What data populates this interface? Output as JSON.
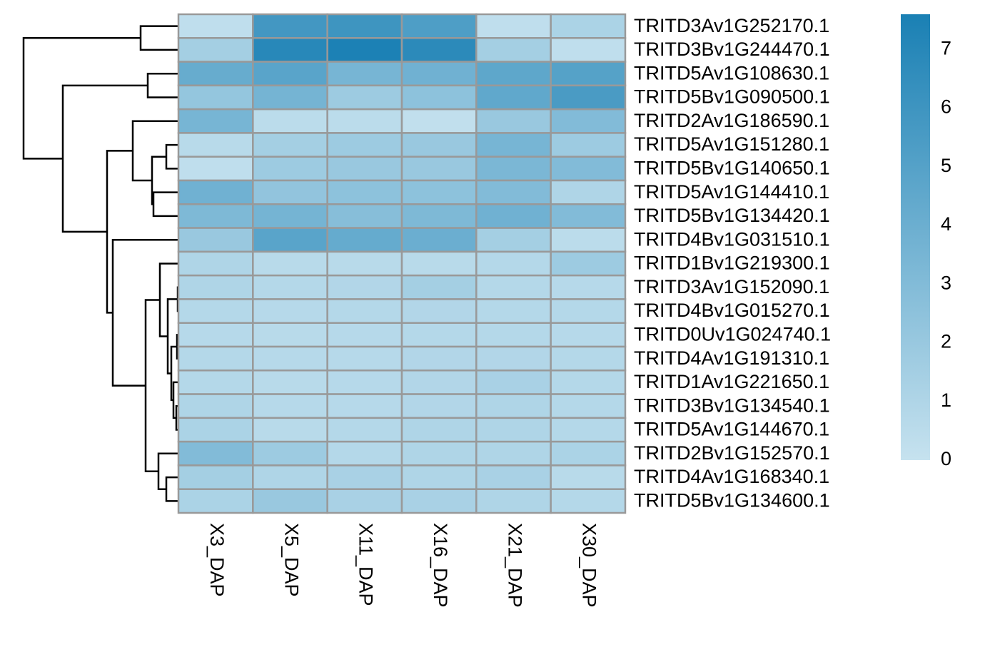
{
  "chart_data": {
    "type": "heatmap",
    "rows": [
      "TRITD3Av1G252170.1",
      "TRITD3Bv1G244470.1",
      "TRITD5Av1G108630.1",
      "TRITD5Bv1G090500.1",
      "TRITD2Av1G186590.1",
      "TRITD5Av1G151280.1",
      "TRITD5Bv1G140650.1",
      "TRITD5Av1G144410.1",
      "TRITD5Bv1G134420.1",
      "TRITD4Bv1G031510.1",
      "TRITD1Bv1G219300.1",
      "TRITD3Av1G152090.1",
      "TRITD4Bv1G015270.1",
      "TRITD0Uv1G024740.1",
      "TRITD4Av1G191310.1",
      "TRITD1Av1G221650.1",
      "TRITD3Bv1G134540.1",
      "TRITD5Av1G144670.1",
      "TRITD2Bv1G152570.1",
      "TRITD4Av1G168340.1",
      "TRITD5Bv1G134600.1"
    ],
    "columns": [
      "X3_DAP",
      "X5_DAP",
      "X11_DAP",
      "X16_DAP",
      "X21_DAP",
      "X30_DAP"
    ],
    "values": [
      [
        0.3,
        5.8,
        6.0,
        5.3,
        0.3,
        1.2
      ],
      [
        1.5,
        7.0,
        7.5,
        6.8,
        1.5,
        0.3
      ],
      [
        4.2,
        4.8,
        3.5,
        3.8,
        4.6,
        5.0
      ],
      [
        2.2,
        3.6,
        1.8,
        2.5,
        4.5,
        5.5
      ],
      [
        3.5,
        0.5,
        0.5,
        0.2,
        2.0,
        3.0
      ],
      [
        0.6,
        1.5,
        1.8,
        2.0,
        3.5,
        1.8
      ],
      [
        0.3,
        1.8,
        2.0,
        2.0,
        3.3,
        3.0
      ],
      [
        3.8,
        2.3,
        2.5,
        2.5,
        3.0,
        1.0
      ],
      [
        3.2,
        3.6,
        2.8,
        3.2,
        3.8,
        3.0
      ],
      [
        2.0,
        4.8,
        4.3,
        4.0,
        1.5,
        0.5
      ],
      [
        1.0,
        0.6,
        0.6,
        0.6,
        0.8,
        1.8
      ],
      [
        1.0,
        0.8,
        0.9,
        1.5,
        0.8,
        0.7
      ],
      [
        0.8,
        0.7,
        0.8,
        0.9,
        0.8,
        0.8
      ],
      [
        0.7,
        0.6,
        0.7,
        0.8,
        0.8,
        0.7
      ],
      [
        0.8,
        0.7,
        0.7,
        0.9,
        0.9,
        0.8
      ],
      [
        0.8,
        0.6,
        0.7,
        0.9,
        1.3,
        0.8
      ],
      [
        1.0,
        0.7,
        0.7,
        0.9,
        1.0,
        0.8
      ],
      [
        1.2,
        0.6,
        0.8,
        1.0,
        1.0,
        0.8
      ],
      [
        3.0,
        1.8,
        0.8,
        1.0,
        1.0,
        1.2
      ],
      [
        1.5,
        1.0,
        1.3,
        1.0,
        1.3,
        0.6
      ],
      [
        1.2,
        2.0,
        1.3,
        1.3,
        1.0,
        0.8
      ]
    ],
    "colors": [
      "#c6e2ef",
      "#1a80b4"
    ],
    "zlim": [
      0,
      7.6
    ],
    "zticks": [
      0,
      1,
      2,
      3,
      4,
      5,
      6,
      7
    ],
    "border_color": "#999999"
  }
}
